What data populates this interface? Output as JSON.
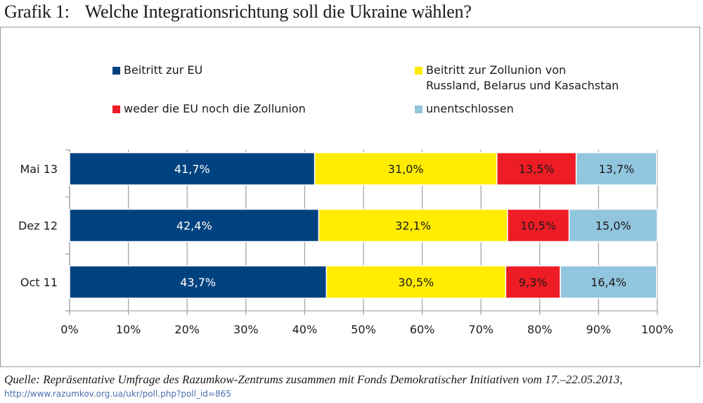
{
  "title": {
    "number": "Grafik 1:",
    "text": "Welche Integrationsrichtung soll die Ukraine wählen?"
  },
  "source": {
    "text": "Quelle: Repräsentative Umfrage des Razumkow-Zentrums zusammen mit Fonds Demokratischer Initiativen vom 17.–22.05.2013,",
    "url": "http://www.razumkov.org.ua/ukr/poll.php?poll_id=865"
  },
  "legend": [
    {
      "label": "Beitritt zur EU",
      "color": "#00427f"
    },
    {
      "label": "Beitritt zur Zollunion von Russland, Belarus und Kasachstan",
      "line1": "Beitritt zur Zollunion von",
      "line2": "Russland, Belarus und Kasachstan",
      "color": "#ffec00"
    },
    {
      "label": "weder die EU noch die Zollunion",
      "color": "#ee1c25"
    },
    {
      "label": "unentschlossen",
      "color": "#92c5de"
    }
  ],
  "chart_data": {
    "type": "bar",
    "orientation": "horizontal",
    "stacked": true,
    "title": "Welche Integrationsrichtung soll die Ukraine wählen?",
    "xlabel": "",
    "ylabel": "",
    "xlim": [
      0,
      100
    ],
    "x_ticks": [
      "0%",
      "10%",
      "20%",
      "30%",
      "40%",
      "50%",
      "60%",
      "70%",
      "80%",
      "90%",
      "100%"
    ],
    "grid": true,
    "legend_position": "top",
    "categories": [
      "Mai 13",
      "Dez 12",
      "Oct 11"
    ],
    "series": [
      {
        "name": "Beitritt zur EU",
        "color": "#00427f",
        "values": [
          41.7,
          42.4,
          43.7
        ],
        "labels": [
          "41,7%",
          "42,4%",
          "43,7%"
        ],
        "label_color": "#ffffff"
      },
      {
        "name": "Beitritt zur Zollunion von Russland, Belarus und Kasachstan",
        "color": "#ffec00",
        "values": [
          31.0,
          32.1,
          30.5
        ],
        "labels": [
          "31,0%",
          "32,1%",
          "30,5%"
        ],
        "label_color": "#1a1a1a"
      },
      {
        "name": "weder die EU noch die Zollunion",
        "color": "#ee1c25",
        "values": [
          13.5,
          10.5,
          9.3
        ],
        "labels": [
          "13,5%",
          "10,5%",
          "9,3%"
        ],
        "label_color": "#1a1a1a"
      },
      {
        "name": "unentschlossen",
        "color": "#92c5de",
        "values": [
          13.7,
          15.0,
          16.4
        ],
        "labels": [
          "13,7%",
          "15,0%",
          "16,4%"
        ],
        "label_color": "#1a1a1a"
      }
    ]
  }
}
